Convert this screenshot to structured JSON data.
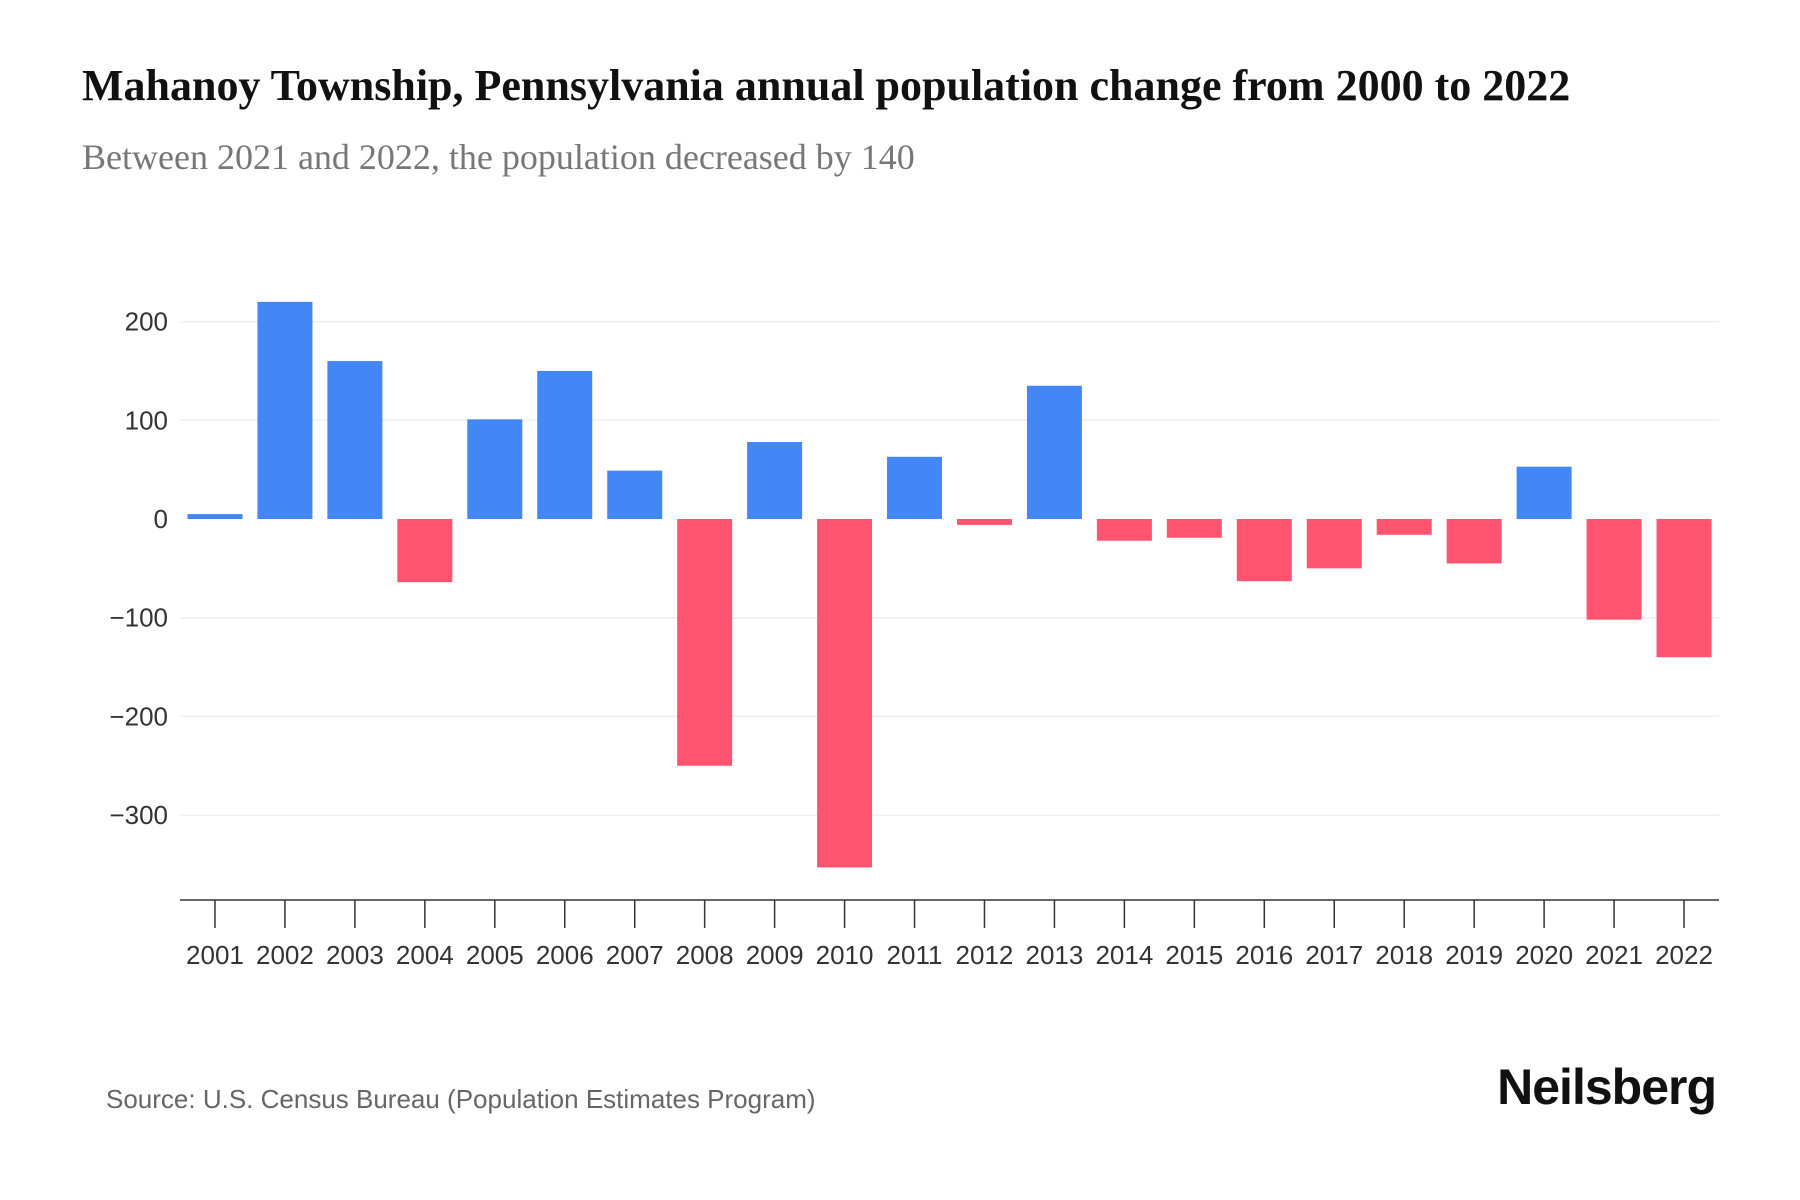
{
  "title": "Mahanoy Township, Pennsylvania annual population change from 2000 to 2022",
  "subtitle": "Between 2021 and 2022, the population decreased by 140",
  "source": "Source: U.S. Census Bureau (Population Estimates Program)",
  "brand": "Neilsberg",
  "colors": {
    "positive": "#4287f5",
    "negative": "#ff5470"
  },
  "chart_data": {
    "type": "bar",
    "title": "Mahanoy Township, Pennsylvania annual population change from 2000 to 2022",
    "xlabel": "",
    "ylabel": "",
    "ylim": [
      -385,
      230
    ],
    "yticks": [
      200,
      100,
      0,
      -100,
      -200,
      -300
    ],
    "ytick_labels": [
      "200",
      "100",
      "0",
      "−100",
      "−200",
      "−300"
    ],
    "grid": true,
    "categories": [
      "2001",
      "2002",
      "2003",
      "2004",
      "2005",
      "2006",
      "2007",
      "2008",
      "2009",
      "2010",
      "2011",
      "2012",
      "2013",
      "2014",
      "2015",
      "2016",
      "2017",
      "2018",
      "2019",
      "2020",
      "2021",
      "2022"
    ],
    "values": [
      5,
      220,
      160,
      -64,
      101,
      150,
      49,
      -250,
      78,
      -353,
      63,
      -6,
      135,
      -22,
      -19,
      -63,
      -50,
      -16,
      -45,
      53,
      -102,
      -140
    ]
  }
}
